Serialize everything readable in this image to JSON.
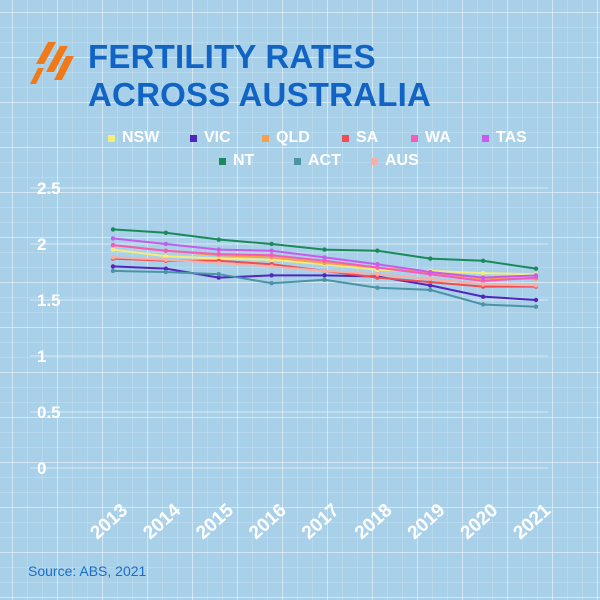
{
  "header": {
    "title_line1": "FERTILITY RATES",
    "title_line2": "ACROSS AUSTRALIA",
    "logo_icon": "sbs-flame-logo-icon"
  },
  "source": "Source: ABS, 2021",
  "colors": {
    "background": "#a8d0e8",
    "title": "#1164c4",
    "logo": "#f07a1a"
  },
  "chart_data": {
    "type": "line",
    "title": "FERTILITY RATES ACROSS AUSTRALIA",
    "x": [
      "2013",
      "2014",
      "2015",
      "2016",
      "2017",
      "2018",
      "2019",
      "2020",
      "2021"
    ],
    "xlabel": "",
    "ylabel": "",
    "ylim": [
      0,
      2.5
    ],
    "yticks": [
      "0",
      "0.5",
      "1",
      "1.5",
      "2",
      "2.5"
    ],
    "grid": true,
    "legend_position": "top",
    "series": [
      {
        "name": "NSW",
        "color": "#f5ec7c",
        "values": [
          1.95,
          1.89,
          1.87,
          1.86,
          1.82,
          1.77,
          1.76,
          1.74,
          1.73
        ]
      },
      {
        "name": "VIC",
        "color": "#5126c0",
        "values": [
          1.8,
          1.78,
          1.7,
          1.72,
          1.72,
          1.71,
          1.63,
          1.53,
          1.5
        ]
      },
      {
        "name": "QLD",
        "color": "#f5a04a",
        "values": [
          1.99,
          1.94,
          1.9,
          1.88,
          1.83,
          1.79,
          1.74,
          1.69,
          1.69
        ]
      },
      {
        "name": "SA",
        "color": "#f04c54",
        "values": [
          1.87,
          1.85,
          1.85,
          1.82,
          1.76,
          1.7,
          1.66,
          1.62,
          1.62
        ]
      },
      {
        "name": "WA",
        "color": "#f55cb8",
        "values": [
          1.99,
          1.94,
          1.91,
          1.9,
          1.85,
          1.79,
          1.73,
          1.67,
          1.7
        ]
      },
      {
        "name": "TAS",
        "color": "#c65ced",
        "values": [
          2.05,
          2.0,
          1.95,
          1.94,
          1.88,
          1.82,
          1.75,
          1.7,
          1.72
        ]
      },
      {
        "name": "NT",
        "color": "#1a8a5a",
        "values": [
          2.13,
          2.1,
          2.04,
          2.0,
          1.95,
          1.94,
          1.87,
          1.85,
          1.78
        ]
      },
      {
        "name": "ACT",
        "color": "#4a94a6",
        "values": [
          1.76,
          1.75,
          1.73,
          1.65,
          1.68,
          1.61,
          1.59,
          1.46,
          1.44
        ]
      },
      {
        "name": "AUS",
        "color": "#f7b0a4",
        "values": [
          1.88,
          1.86,
          1.83,
          1.8,
          1.76,
          1.73,
          1.69,
          1.64,
          1.63
        ]
      }
    ]
  }
}
